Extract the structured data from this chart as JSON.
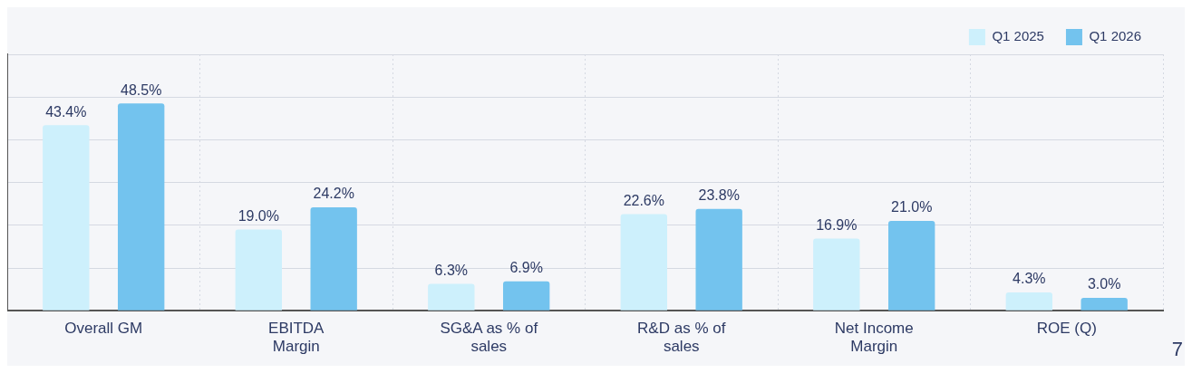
{
  "chart_data": {
    "type": "bar",
    "categories": [
      "Overall GM",
      "EBITDA Margin",
      "SG&A as % of sales",
      "R&D as % of sales",
      "Net Income Margin",
      "ROE (Q)"
    ],
    "series": [
      {
        "name": "Q1 2025",
        "color": "#cdf0fc",
        "values": [
          43.4,
          19.0,
          6.3,
          22.6,
          16.9,
          4.3
        ],
        "value_labels": [
          "43.4%",
          "19.0%",
          "6.3%",
          "22.6%",
          "16.9%",
          "4.3%"
        ]
      },
      {
        "name": "Q1 2026",
        "color": "#73c3ee",
        "values": [
          48.5,
          24.2,
          6.9,
          23.8,
          21.0,
          3.0
        ],
        "value_labels": [
          "48.5%",
          "24.2%",
          "6.9%",
          "23.8%",
          "21.0%",
          "3.0%"
        ]
      }
    ],
    "ylim": [
      0,
      60
    ],
    "yticks": [
      {
        "value": 0,
        "label": null
      },
      {
        "value": 10,
        "label": null
      },
      {
        "value": 20,
        "label": null
      },
      {
        "value": 30,
        "label": null
      },
      {
        "value": 40,
        "label": null
      },
      {
        "value": 50,
        "label": null
      },
      {
        "value": 60,
        "label": null
      }
    ],
    "grid": true,
    "legend": "top right",
    "tick_labels": "x",
    "annotations": [
      "7"
    ]
  }
}
